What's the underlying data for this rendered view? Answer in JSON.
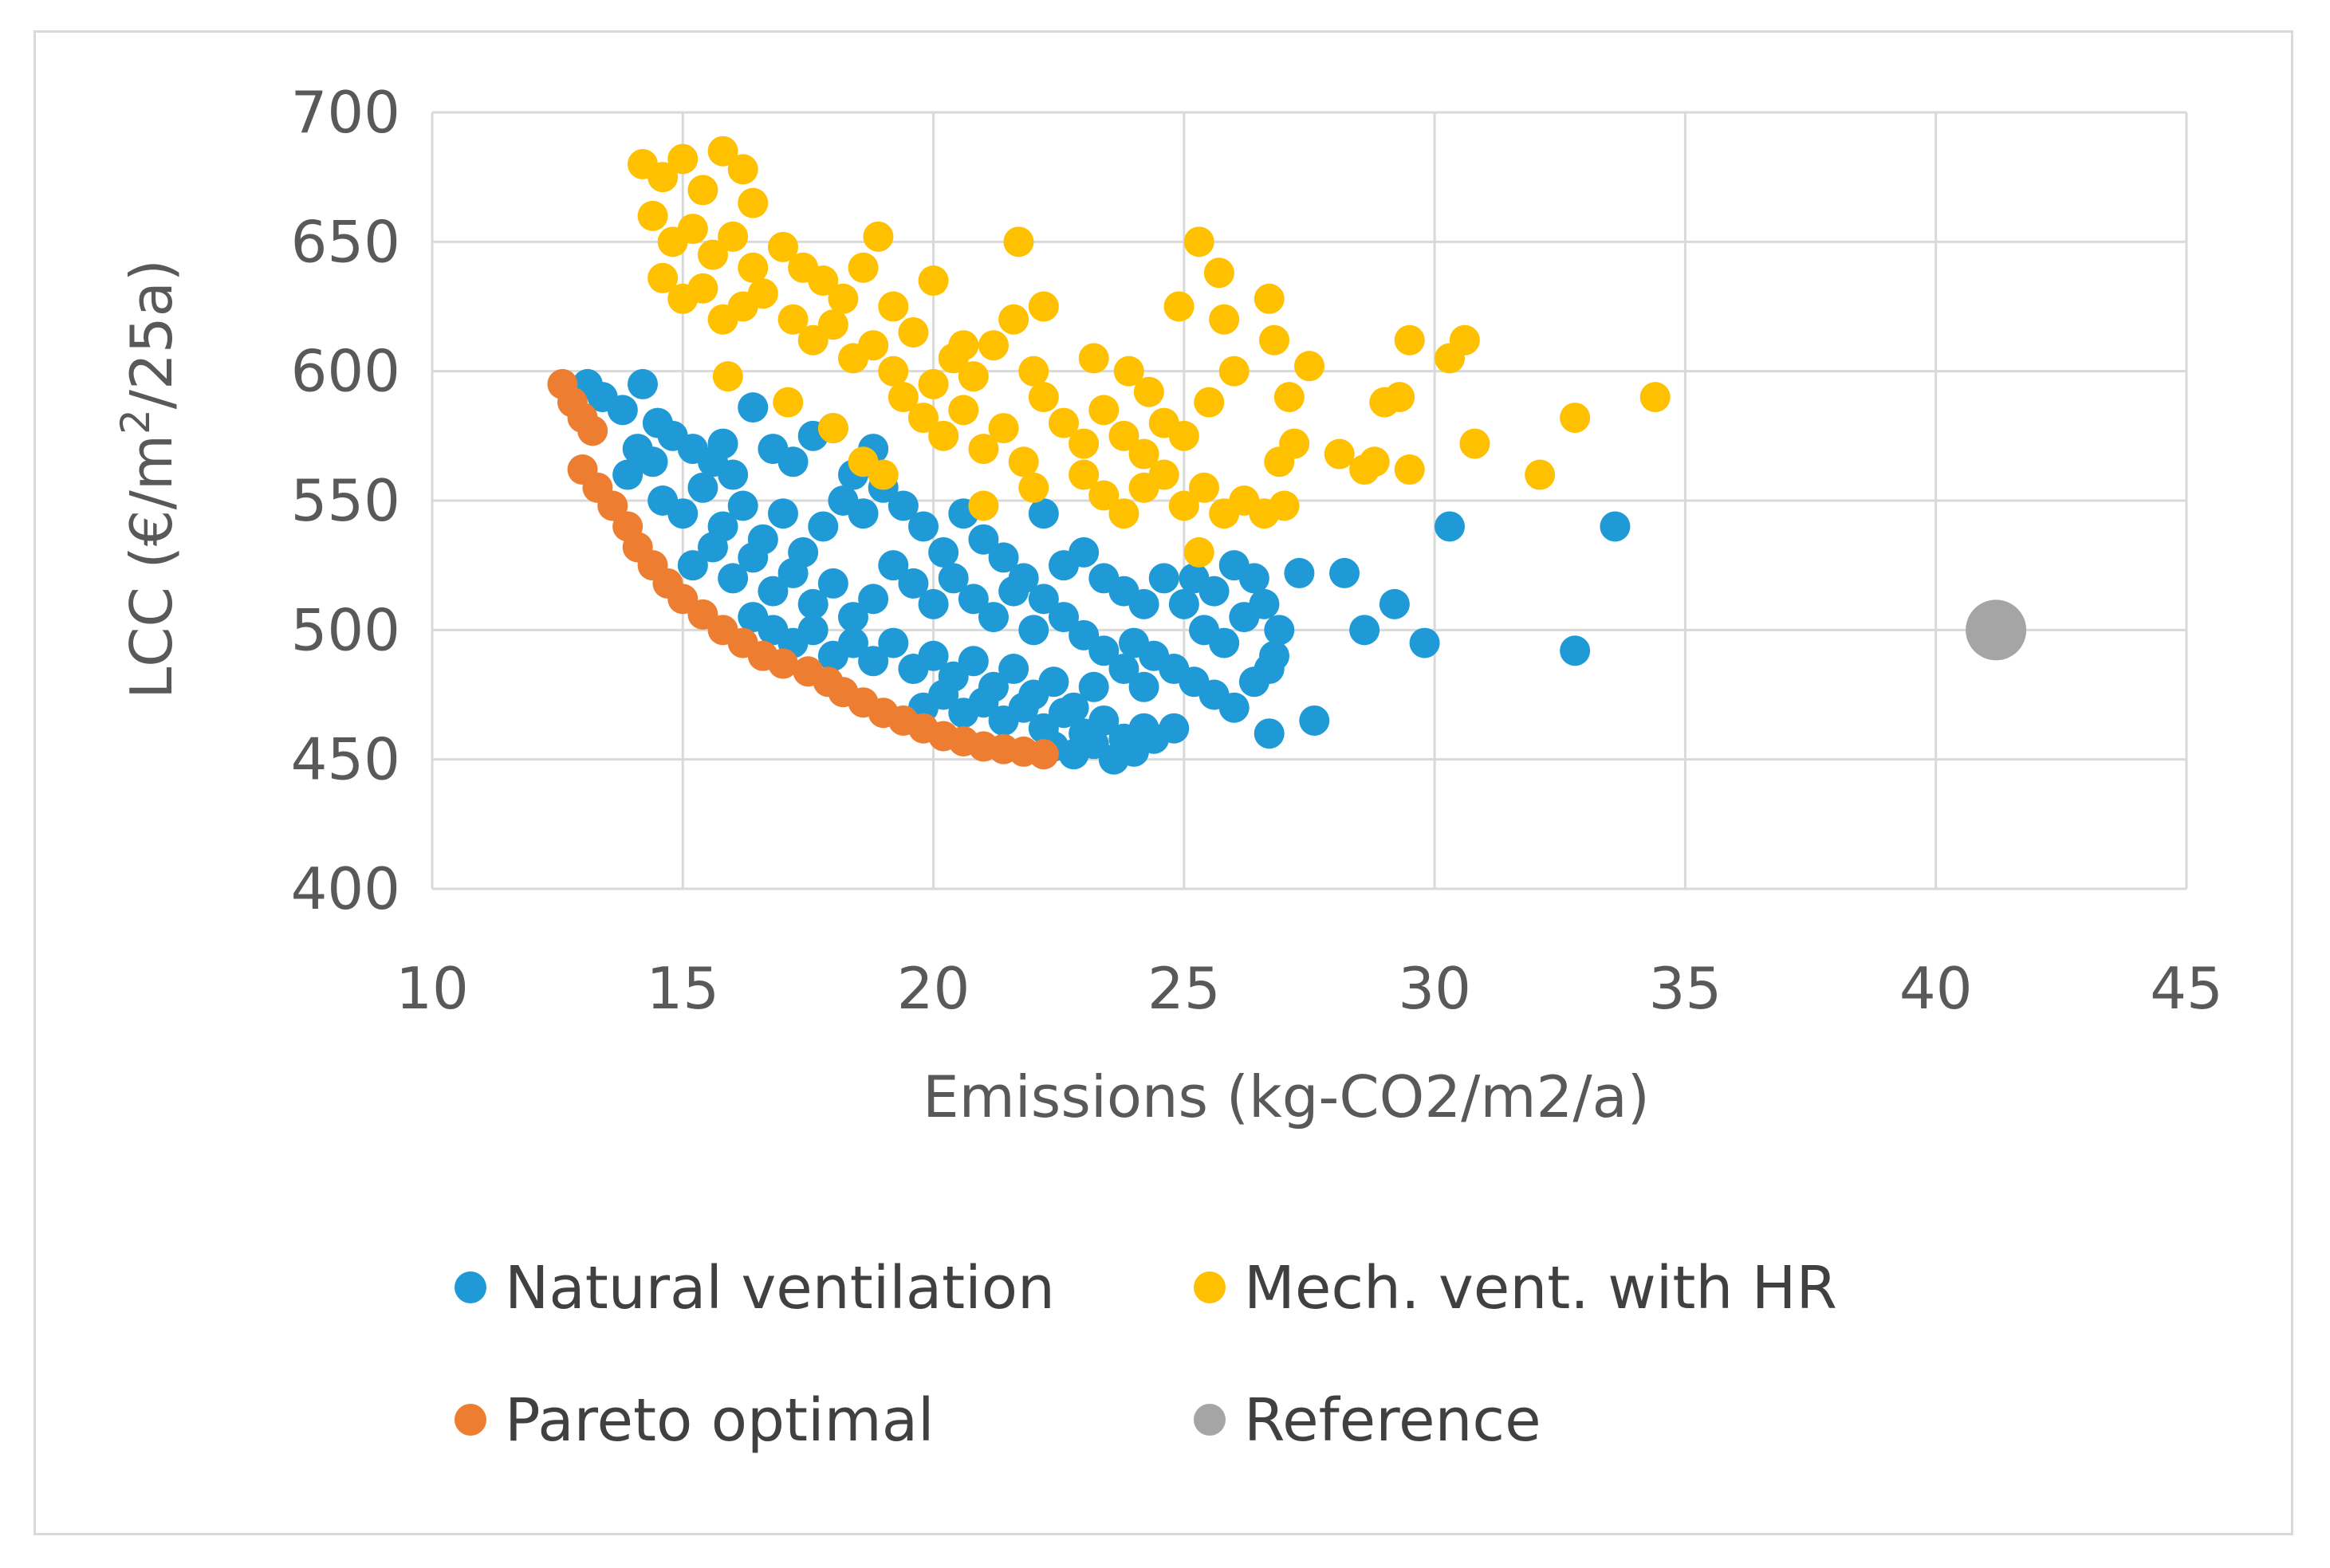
{
  "chart_data": {
    "type": "scatter",
    "xlabel": "Emissions (kg-CO2/m2/a)",
    "ylabel_parts": [
      "LCC (€/m",
      "2",
      "/25a)"
    ],
    "xlim": [
      10,
      45
    ],
    "ylim": [
      400,
      700
    ],
    "xticks": [
      "10",
      "15",
      "20",
      "25",
      "30",
      "35",
      "40",
      "45"
    ],
    "yticks": [
      "400",
      "450",
      "500",
      "550",
      "600",
      "650",
      "700"
    ],
    "grid": true,
    "legend_position": "bottom",
    "series": [
      {
        "name": "Natural ventilation",
        "color": "#1f9ad6",
        "points": [
          [
            13.1,
            595
          ],
          [
            13.4,
            590
          ],
          [
            13.8,
            585
          ],
          [
            14.2,
            595
          ],
          [
            14.5,
            580
          ],
          [
            14.1,
            570
          ],
          [
            13.9,
            560
          ],
          [
            14.4,
            565
          ],
          [
            14.8,
            575
          ],
          [
            15.2,
            570
          ],
          [
            15.6,
            565
          ],
          [
            16.0,
            560
          ],
          [
            15.8,
            572
          ],
          [
            16.4,
            586
          ],
          [
            16.8,
            570
          ],
          [
            17.2,
            565
          ],
          [
            17.6,
            575
          ],
          [
            18.0,
            578
          ],
          [
            18.4,
            560
          ],
          [
            18.8,
            570
          ],
          [
            14.6,
            550
          ],
          [
            15.0,
            545
          ],
          [
            15.4,
            555
          ],
          [
            15.8,
            540
          ],
          [
            16.2,
            548
          ],
          [
            16.6,
            535
          ],
          [
            17.0,
            545
          ],
          [
            17.4,
            530
          ],
          [
            17.8,
            540
          ],
          [
            18.2,
            550
          ],
          [
            18.6,
            545
          ],
          [
            19.0,
            555
          ],
          [
            19.4,
            548
          ],
          [
            19.8,
            540
          ],
          [
            20.2,
            530
          ],
          [
            15.2,
            525
          ],
          [
            15.6,
            532
          ],
          [
            16.0,
            520
          ],
          [
            16.4,
            528
          ],
          [
            16.8,
            515
          ],
          [
            17.2,
            522
          ],
          [
            17.6,
            510
          ],
          [
            18.0,
            518
          ],
          [
            18.4,
            505
          ],
          [
            18.8,
            512
          ],
          [
            19.2,
            525
          ],
          [
            19.6,
            518
          ],
          [
            20.0,
            510
          ],
          [
            20.4,
            520
          ],
          [
            20.8,
            512
          ],
          [
            21.2,
            505
          ],
          [
            21.6,
            515
          ],
          [
            22.0,
            500
          ],
          [
            16.4,
            505
          ],
          [
            16.8,
            500
          ],
          [
            17.2,
            495
          ],
          [
            17.6,
            500
          ],
          [
            18.0,
            490
          ],
          [
            18.4,
            495
          ],
          [
            18.8,
            488
          ],
          [
            19.2,
            495
          ],
          [
            19.6,
            485
          ],
          [
            20.0,
            490
          ],
          [
            20.4,
            482
          ],
          [
            20.8,
            488
          ],
          [
            21.2,
            478
          ],
          [
            21.6,
            485
          ],
          [
            22.0,
            475
          ],
          [
            22.4,
            480
          ],
          [
            22.8,
            470
          ],
          [
            23.2,
            478
          ],
          [
            19.8,
            470
          ],
          [
            20.2,
            475
          ],
          [
            20.6,
            468
          ],
          [
            21.0,
            472
          ],
          [
            21.4,
            465
          ],
          [
            21.8,
            470
          ],
          [
            22.2,
            462
          ],
          [
            22.6,
            468
          ],
          [
            23.0,
            460
          ],
          [
            23.4,
            465
          ],
          [
            23.8,
            458
          ],
          [
            24.2,
            462
          ],
          [
            22.4,
            455
          ],
          [
            22.8,
            452
          ],
          [
            23.2,
            456
          ],
          [
            23.6,
            450
          ],
          [
            24.0,
            453
          ],
          [
            24.4,
            458
          ],
          [
            24.8,
            462
          ],
          [
            22.2,
            545
          ],
          [
            22.6,
            525
          ],
          [
            23.0,
            530
          ],
          [
            23.4,
            520
          ],
          [
            23.8,
            515
          ],
          [
            24.2,
            510
          ],
          [
            24.6,
            520
          ],
          [
            25.0,
            510
          ],
          [
            25.4,
            500
          ],
          [
            25.8,
            495
          ],
          [
            26.2,
            505
          ],
          [
            24.0,
            495
          ],
          [
            24.4,
            490
          ],
          [
            24.8,
            485
          ],
          [
            25.2,
            480
          ],
          [
            25.6,
            475
          ],
          [
            26.0,
            470
          ],
          [
            26.4,
            480
          ],
          [
            26.8,
            490
          ],
          [
            25.2,
            520
          ],
          [
            25.6,
            515
          ],
          [
            26.0,
            525
          ],
          [
            26.4,
            520
          ],
          [
            26.6,
            510
          ],
          [
            26.9,
            500
          ],
          [
            26.7,
            485
          ],
          [
            26.7,
            460
          ],
          [
            27.3,
            522
          ],
          [
            27.6,
            465
          ],
          [
            28.2,
            522
          ],
          [
            28.6,
            500
          ],
          [
            29.2,
            510
          ],
          [
            29.8,
            495
          ],
          [
            30.3,
            540
          ],
          [
            32.8,
            492
          ],
          [
            33.6,
            540
          ],
          [
            20.6,
            545
          ],
          [
            21.0,
            535
          ],
          [
            21.4,
            528
          ],
          [
            21.8,
            520
          ],
          [
            22.2,
            512
          ],
          [
            22.6,
            505
          ],
          [
            23.0,
            498
          ],
          [
            23.4,
            492
          ],
          [
            23.8,
            485
          ],
          [
            24.2,
            478
          ]
        ]
      },
      {
        "name": "Mech. vent. with HR",
        "color": "#ffc000",
        "points": [
          [
            14.2,
            680
          ],
          [
            14.6,
            675
          ],
          [
            15.0,
            682
          ],
          [
            15.4,
            670
          ],
          [
            15.8,
            685
          ],
          [
            16.2,
            678
          ],
          [
            16.4,
            665
          ],
          [
            14.4,
            660
          ],
          [
            14.8,
            650
          ],
          [
            15.2,
            655
          ],
          [
            15.6,
            645
          ],
          [
            16.0,
            652
          ],
          [
            16.4,
            640
          ],
          [
            14.6,
            636
          ],
          [
            15.0,
            628
          ],
          [
            15.4,
            632
          ],
          [
            15.8,
            620
          ],
          [
            16.2,
            625
          ],
          [
            16.6,
            630
          ],
          [
            17.0,
            648
          ],
          [
            17.4,
            640
          ],
          [
            17.8,
            635
          ],
          [
            18.2,
            628
          ],
          [
            18.6,
            640
          ],
          [
            18.9,
            652
          ],
          [
            17.2,
            620
          ],
          [
            17.6,
            612
          ],
          [
            18.0,
            618
          ],
          [
            18.4,
            605
          ],
          [
            18.8,
            610
          ],
          [
            19.2,
            600
          ],
          [
            19.6,
            615
          ],
          [
            20.0,
            635
          ],
          [
            20.4,
            605
          ],
          [
            20.8,
            598
          ],
          [
            21.2,
            610
          ],
          [
            21.6,
            620
          ],
          [
            21.7,
            650
          ],
          [
            22.2,
            625
          ],
          [
            15.9,
            598
          ],
          [
            17.1,
            588
          ],
          [
            18.0,
            578
          ],
          [
            18.6,
            565
          ],
          [
            19.0,
            560
          ],
          [
            19.4,
            590
          ],
          [
            19.8,
            582
          ],
          [
            20.2,
            575
          ],
          [
            20.6,
            585
          ],
          [
            21.0,
            570
          ],
          [
            21.4,
            578
          ],
          [
            21.8,
            565
          ],
          [
            22.2,
            590
          ],
          [
            22.6,
            580
          ],
          [
            23.0,
            572
          ],
          [
            23.4,
            585
          ],
          [
            23.8,
            575
          ],
          [
            24.2,
            568
          ],
          [
            24.6,
            580
          ],
          [
            25.0,
            575
          ],
          [
            23.0,
            560
          ],
          [
            23.4,
            552
          ],
          [
            23.8,
            545
          ],
          [
            24.2,
            555
          ],
          [
            24.6,
            560
          ],
          [
            25.0,
            548
          ],
          [
            25.4,
            555
          ],
          [
            25.8,
            545
          ],
          [
            26.2,
            550
          ],
          [
            26.6,
            545
          ],
          [
            27.0,
            548
          ],
          [
            21.0,
            548
          ],
          [
            22.0,
            555
          ],
          [
            23.2,
            605
          ],
          [
            23.9,
            600
          ],
          [
            24.3,
            592
          ],
          [
            24.9,
            625
          ],
          [
            25.3,
            650
          ],
          [
            25.7,
            638
          ],
          [
            25.8,
            620
          ],
          [
            26.7,
            628
          ],
          [
            26.8,
            612
          ],
          [
            27.1,
            590
          ],
          [
            27.5,
            602
          ],
          [
            27.2,
            572
          ],
          [
            26.9,
            565
          ],
          [
            28.1,
            568
          ],
          [
            28.6,
            562
          ],
          [
            28.8,
            565
          ],
          [
            29.0,
            588
          ],
          [
            29.3,
            590
          ],
          [
            29.5,
            612
          ],
          [
            29.5,
            562
          ],
          [
            30.3,
            605
          ],
          [
            30.6,
            612
          ],
          [
            30.8,
            572
          ],
          [
            32.1,
            560
          ],
          [
            32.8,
            582
          ],
          [
            34.4,
            590
          ],
          [
            25.3,
            530
          ],
          [
            25.5,
            588
          ],
          [
            26.0,
            600
          ],
          [
            20.0,
            595
          ],
          [
            22.0,
            600
          ],
          [
            19.2,
            625
          ],
          [
            20.6,
            610
          ]
        ]
      },
      {
        "name": "Pareto optimal",
        "color": "#ed7d31",
        "points": [
          [
            12.6,
            595
          ],
          [
            12.8,
            588
          ],
          [
            13.0,
            582
          ],
          [
            13.2,
            577
          ],
          [
            13.0,
            562
          ],
          [
            13.3,
            555
          ],
          [
            13.6,
            548
          ],
          [
            13.9,
            540
          ],
          [
            14.1,
            532
          ],
          [
            14.4,
            525
          ],
          [
            14.7,
            518
          ],
          [
            15.0,
            512
          ],
          [
            15.4,
            506
          ],
          [
            15.8,
            500
          ],
          [
            16.2,
            495
          ],
          [
            16.6,
            490
          ],
          [
            17.0,
            487
          ],
          [
            17.5,
            484
          ],
          [
            17.9,
            480
          ],
          [
            18.2,
            476
          ],
          [
            18.6,
            472
          ],
          [
            19.0,
            468
          ],
          [
            19.4,
            465
          ],
          [
            19.8,
            462
          ],
          [
            20.2,
            459
          ],
          [
            20.6,
            457
          ],
          [
            21.0,
            455
          ],
          [
            21.4,
            454
          ],
          [
            21.8,
            453
          ],
          [
            22.2,
            452
          ]
        ]
      },
      {
        "name": "Reference",
        "color": "#a5a5a5",
        "big": true,
        "points": [
          [
            41.2,
            500
          ]
        ]
      }
    ]
  }
}
